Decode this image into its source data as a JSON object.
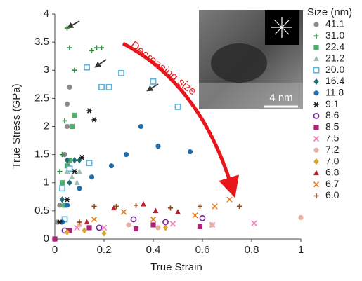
{
  "chart_data": {
    "type": "scatter",
    "xlabel": "True Strain",
    "ylabel": "True Stress (GPa)",
    "xlim": [
      0,
      1
    ],
    "xticks": [
      0,
      0.2,
      0.4,
      0.6,
      0.8,
      1
    ],
    "ylim": [
      0,
      4
    ],
    "yticks": [
      0,
      0.5,
      1,
      1.5,
      2,
      2.5,
      3,
      3.5,
      4
    ],
    "annotation": "Decreasing size",
    "scale_bar": "4 nm",
    "legend_title": "Size (nm)",
    "series": [
      {
        "name": "41.1",
        "color": "#8c8c8c",
        "marker": "circle",
        "open": false,
        "x": [
          0.01,
          0.02,
          0.03,
          0.04,
          0.05,
          0.05,
          0.06
        ],
        "values": [
          0.3,
          0.6,
          1.0,
          1.5,
          2.0,
          2.4,
          2.7
        ]
      },
      {
        "name": "31.0",
        "color": "#2e8b3a",
        "marker": "plus",
        "open": false,
        "x": [
          0.05,
          0.06,
          0.15,
          0.17,
          0.19,
          0.04,
          0.03,
          0.02,
          0.08
        ],
        "values": [
          3.75,
          3.4,
          3.35,
          3.4,
          3.4,
          2.1,
          1.5,
          1.2,
          3.0
        ]
      },
      {
        "name": "22.4",
        "color": "#4caf6a",
        "marker": "square",
        "open": false,
        "x": [
          0.08,
          0.07,
          0.05,
          0.06,
          0.03,
          0.04
        ],
        "values": [
          2.2,
          2.0,
          1.3,
          1.4,
          1.0,
          0.6
        ]
      },
      {
        "name": "21.2",
        "color": "#9fbfb0",
        "marker": "triangle",
        "open": false,
        "x": [
          0.05,
          0.07,
          0.09,
          0.1
        ],
        "values": [
          1.2,
          1.1,
          1.0,
          1.2
        ]
      },
      {
        "name": "20.0",
        "color": "#5bb3e0",
        "marker": "square",
        "open": true,
        "x": [
          0.13,
          0.27,
          0.19,
          0.22,
          0.4,
          0.5,
          0.14,
          0.06,
          0.03,
          0.04
        ],
        "values": [
          3.05,
          2.95,
          2.7,
          2.7,
          2.8,
          2.35,
          1.35,
          1.25,
          0.9,
          0.35
        ]
      },
      {
        "name": "16.4",
        "color": "#1f6f7a",
        "marker": "diamond",
        "open": false,
        "x": [
          0.05,
          0.08,
          0.1,
          0.06,
          0.03
        ],
        "values": [
          1.4,
          1.4,
          1.4,
          1.0,
          0.7
        ]
      },
      {
        "name": "11.8",
        "color": "#1f6fb0",
        "marker": "circle",
        "open": false,
        "x": [
          0.35,
          0.55,
          0.42,
          0.29,
          0.23,
          0.15,
          0.1,
          0.05,
          0.03
        ],
        "values": [
          2.0,
          1.55,
          1.65,
          1.5,
          1.3,
          1.1,
          0.9,
          0.6,
          0.3
        ]
      },
      {
        "name": "9.1",
        "color": "#222222",
        "marker": "star",
        "open": false,
        "x": [
          0.14,
          0.16,
          0.11,
          0.08,
          0.05,
          0.02
        ],
        "values": [
          2.28,
          2.12,
          1.45,
          1.2,
          0.7,
          0.3
        ]
      },
      {
        "name": "8.6",
        "color": "#7b2a9a",
        "marker": "circle",
        "open": true,
        "x": [
          0.6,
          0.32,
          0.45,
          0.18,
          0.04
        ],
        "values": [
          0.37,
          0.35,
          0.3,
          0.2,
          0.15
        ]
      },
      {
        "name": "8.5",
        "color": "#b0217a",
        "marker": "square",
        "open": false,
        "x": [
          0.0,
          0.33,
          0.4,
          0.59,
          0.14,
          0.06
        ],
        "values": [
          0.0,
          0.18,
          0.25,
          0.22,
          0.2,
          0.15
        ]
      },
      {
        "name": "7.5",
        "color": "#f07ab8",
        "marker": "x",
        "open": false,
        "x": [
          0.81,
          0.64,
          0.48,
          0.2,
          0.09
        ],
        "values": [
          0.28,
          0.25,
          0.27,
          0.2,
          0.2
        ]
      },
      {
        "name": "7.2",
        "color": "#e8b0a0",
        "marker": "circle",
        "open": false,
        "x": [
          0.64,
          0.42,
          0.3,
          0.1,
          1.0
        ],
        "values": [
          0.25,
          0.2,
          0.25,
          0.25,
          0.38
        ]
      },
      {
        "name": "7.0",
        "color": "#d9a52a",
        "marker": "diamond",
        "open": false,
        "x": [
          0.12,
          0.2,
          0.05,
          0.45
        ],
        "values": [
          0.15,
          0.1,
          0.12,
          0.2
        ]
      },
      {
        "name": "6.8",
        "color": "#c0202a",
        "marker": "triangle",
        "open": false,
        "x": [
          0.24,
          0.36,
          0.41,
          0.5,
          0.13
        ],
        "values": [
          0.55,
          0.62,
          0.5,
          0.48,
          0.3
        ]
      },
      {
        "name": "6.7",
        "color": "#e87a1e",
        "marker": "x",
        "open": false,
        "x": [
          0.28,
          0.4,
          0.57,
          0.65,
          0.71,
          0.16
        ],
        "values": [
          0.48,
          0.35,
          0.42,
          0.58,
          0.7,
          0.35
        ]
      },
      {
        "name": "6.0",
        "color": "#8a4a1a",
        "marker": "plus",
        "open": false,
        "x": [
          0.16,
          0.25,
          0.33,
          0.47,
          0.59,
          0.75,
          0.1
        ],
        "values": [
          0.58,
          0.58,
          0.6,
          0.55,
          0.58,
          0.58,
          0.3
        ]
      }
    ]
  }
}
